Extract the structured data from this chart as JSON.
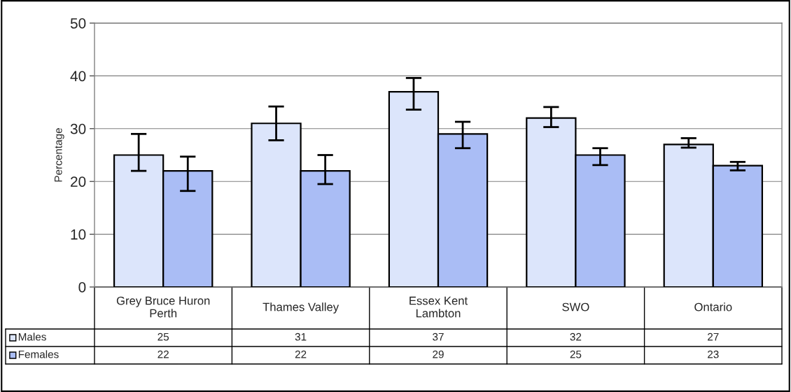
{
  "chart_data": {
    "type": "bar",
    "ylabel": "Percentage",
    "categories": [
      "Grey Bruce Huron\nPerth",
      "Thames Valley",
      "Essex Kent\nLambton",
      "SWO",
      "Ontario"
    ],
    "series": [
      {
        "name": "Males",
        "color": "#dce5fb",
        "values": [
          25,
          31,
          37,
          32,
          27
        ],
        "errors": [
          [
            22,
            29
          ],
          [
            27.8,
            34.2
          ],
          [
            33.6,
            39.6
          ],
          [
            30.3,
            34.1
          ],
          [
            26.4,
            28.2
          ]
        ]
      },
      {
        "name": "Females",
        "color": "#aabdf5",
        "values": [
          22,
          22,
          29,
          25,
          23
        ],
        "errors": [
          [
            18.2,
            24.7
          ],
          [
            19.5,
            25
          ],
          [
            26.3,
            31.3
          ],
          [
            23.1,
            26.3
          ],
          [
            22.1,
            23.7
          ]
        ]
      }
    ],
    "ylim": [
      0,
      50
    ],
    "yticks": [
      0,
      10,
      20,
      30,
      40,
      50
    ],
    "grid": "y",
    "data_labels": true,
    "legend": "bottom left"
  }
}
